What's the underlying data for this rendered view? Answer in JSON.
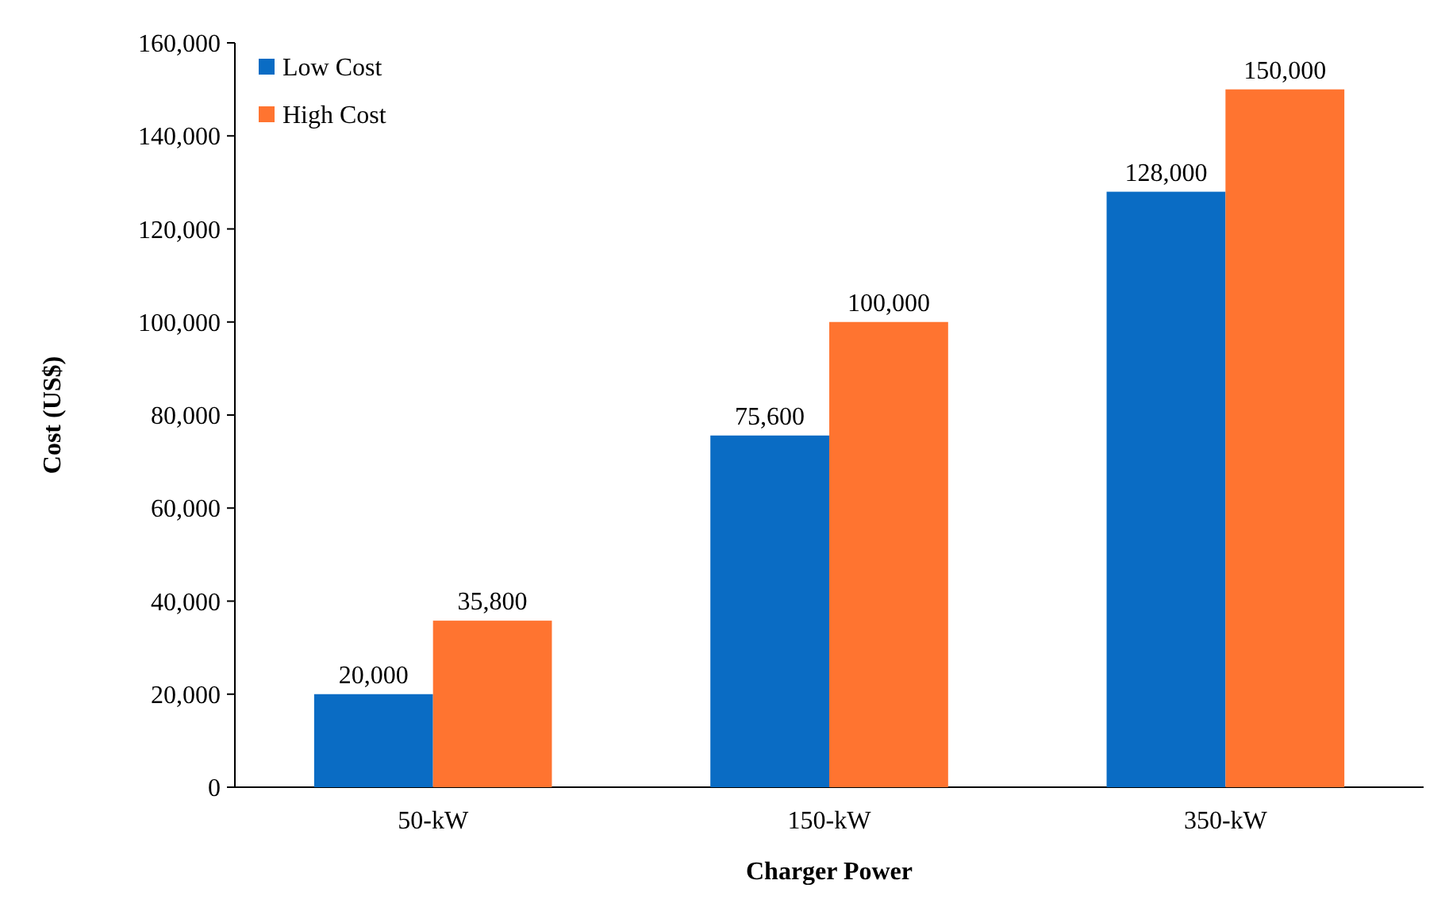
{
  "chart_data": {
    "type": "bar",
    "xlabel": "Charger Power",
    "ylabel": "Cost (US$)",
    "categories": [
      "50-kW",
      "150-kW",
      "350-kW"
    ],
    "series": [
      {
        "name": "Low Cost",
        "color": "#0a6cc4",
        "values": [
          20000,
          75600,
          128000
        ]
      },
      {
        "name": "High Cost",
        "color": "#ff7430",
        "values": [
          35800,
          100000,
          150000
        ]
      }
    ],
    "ylim": [
      0,
      160000
    ],
    "yticks": [
      {
        "value": 0,
        "label": "0"
      },
      {
        "value": 20000,
        "label": "20,000"
      },
      {
        "value": 40000,
        "label": "40,000"
      },
      {
        "value": 60000,
        "label": "60,000"
      },
      {
        "value": 80000,
        "label": "80,000"
      },
      {
        "value": 100000,
        "label": "100,000"
      },
      {
        "value": 120000,
        "label": "120,000"
      },
      {
        "value": 140000,
        "label": "140,000"
      },
      {
        "value": 160000,
        "label": "160,000"
      }
    ],
    "value_labels": [
      [
        "20,000",
        "75,600",
        "128,000"
      ],
      [
        "35,800",
        "100,000",
        "150,000"
      ]
    ],
    "grid": false,
    "legend": "top left"
  }
}
